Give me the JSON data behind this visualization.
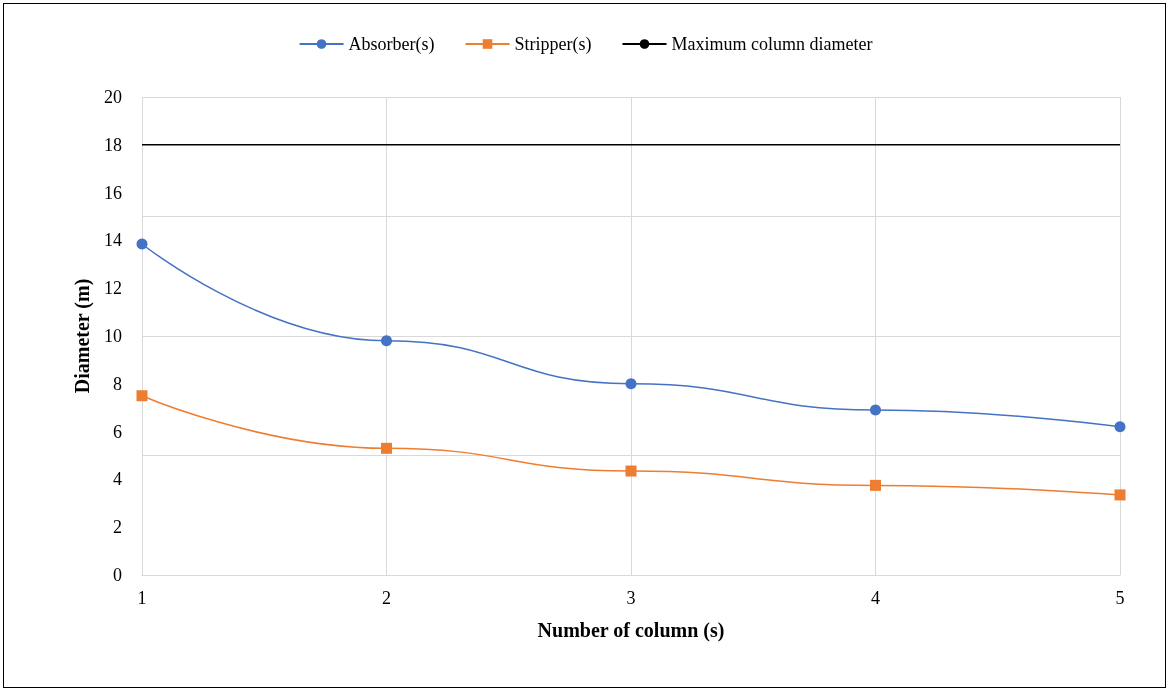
{
  "chart_data": {
    "type": "line",
    "xlabel": "Number of column (s)",
    "ylabel": "Diameter (m)",
    "x": [
      1,
      2,
      3,
      4,
      5
    ],
    "series": [
      {
        "name": "Absorber(s)",
        "color": "#4472c4",
        "marker": "circle",
        "values": [
          13.85,
          9.8,
          8.0,
          6.9,
          6.2
        ]
      },
      {
        "name": "Stripper(s)",
        "color": "#ed7d31",
        "marker": "square",
        "values": [
          7.5,
          5.3,
          4.35,
          3.75,
          3.35
        ]
      },
      {
        "name": "Maximum column diameter",
        "color": "#000000",
        "marker": "none",
        "values": [
          18,
          18,
          18,
          18,
          18
        ]
      }
    ],
    "xlim": [
      1,
      5
    ],
    "xticks": [
      1,
      2,
      3,
      4,
      5
    ],
    "ylim": [
      0,
      20
    ],
    "yticks": [
      0,
      2,
      4,
      6,
      8,
      10,
      12,
      14,
      16,
      18,
      20
    ],
    "grid": true,
    "legend": "top",
    "line_style": "solid"
  }
}
